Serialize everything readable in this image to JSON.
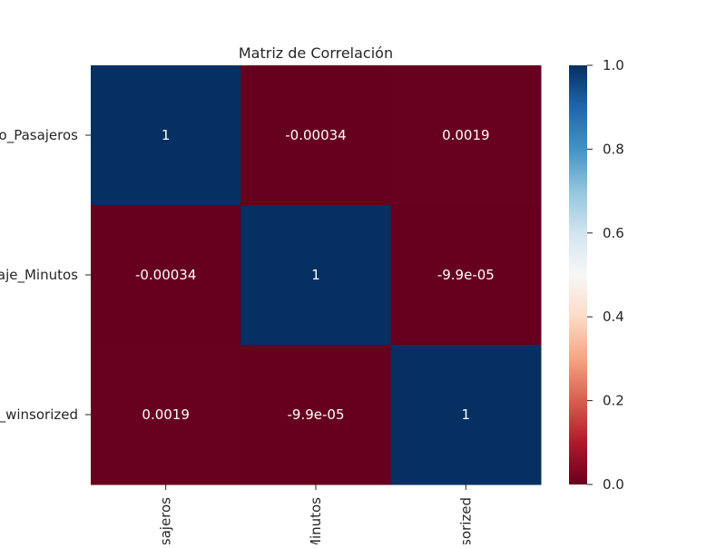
{
  "chart_data": {
    "type": "heatmap",
    "title": "Matriz de Correlación",
    "row_labels": [
      "o_Pasajeros",
      "iaje_Minutos",
      "s_winsorized"
    ],
    "col_labels": [
      "sajeros",
      "Minutos",
      "sorized"
    ],
    "values": [
      [
        1,
        -0.00034,
        0.0019
      ],
      [
        -0.00034,
        1,
        -9.9e-05
      ],
      [
        0.0019,
        -9.9e-05,
        1
      ]
    ],
    "cell_labels": [
      [
        "1",
        "-0.00034",
        "0.0019"
      ],
      [
        "-0.00034",
        "1",
        "-9.9e-05"
      ],
      [
        "0.0019",
        "-9.9e-05",
        "1"
      ]
    ],
    "colormap": "RdBu",
    "vmin": 0.0,
    "vmax": 1.0,
    "colorbar_ticks": [
      "0.0",
      "0.2",
      "0.4",
      "0.6",
      "0.8",
      "1.0"
    ],
    "colors": {
      "high": "#053061",
      "low": "#67001f"
    }
  }
}
